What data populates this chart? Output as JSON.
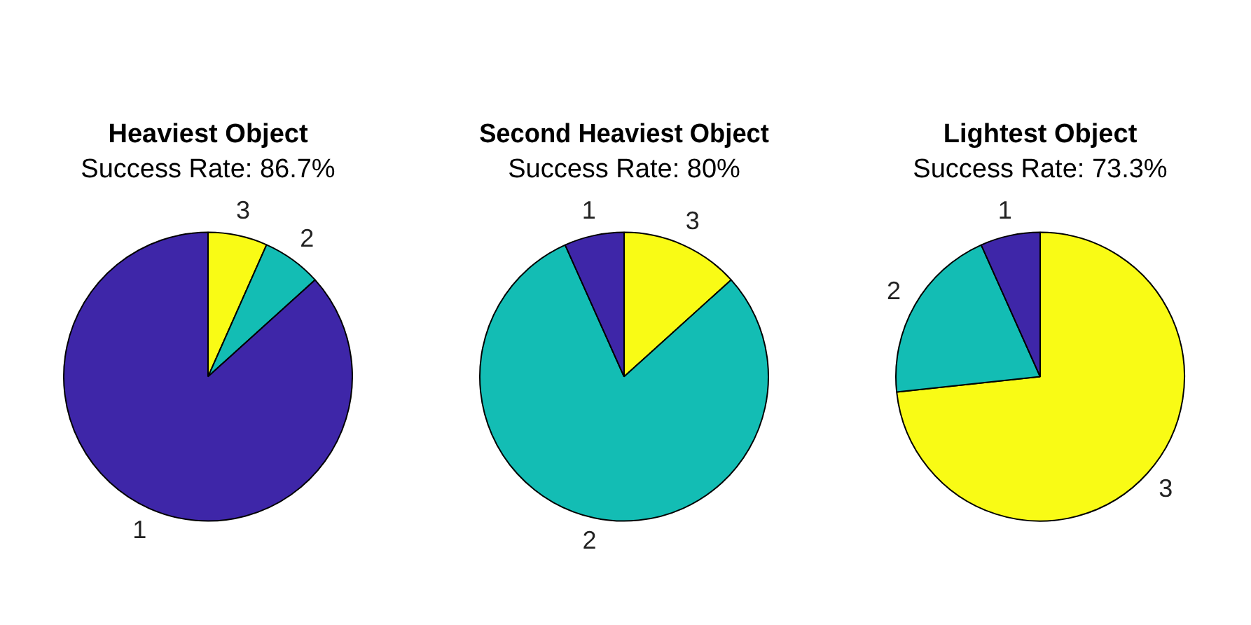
{
  "chart_data": [
    {
      "type": "pie",
      "title": "Heaviest Object",
      "subtitle": "Success Rate: 86.7%",
      "categories": [
        "1",
        "2",
        "3"
      ],
      "values": [
        86.7,
        6.65,
        6.65
      ],
      "colors": [
        "#3e26a8",
        "#13bdb4",
        "#f9fb15"
      ]
    },
    {
      "type": "pie",
      "title": "Second Heaviest Object",
      "subtitle": "Success Rate: 80%",
      "categories": [
        "1",
        "2",
        "3"
      ],
      "values": [
        6.7,
        80,
        13.3
      ],
      "colors": [
        "#3e26a8",
        "#13bdb4",
        "#f9fb15"
      ]
    },
    {
      "type": "pie",
      "title": "Lightest Object",
      "subtitle": "Success Rate: 73.3%",
      "categories": [
        "1",
        "2",
        "3"
      ],
      "values": [
        6.7,
        20,
        73.3
      ],
      "colors": [
        "#3e26a8",
        "#13bdb4",
        "#f9fb15"
      ]
    }
  ]
}
